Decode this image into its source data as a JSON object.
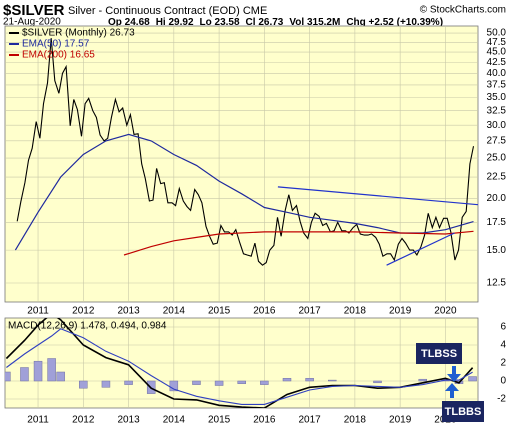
{
  "chart_data": [
    {
      "type": "line",
      "title": "$SILVER",
      "subtitle": "Silver - Continuous Contract (EOD) CME",
      "source": "© StockCharts.com",
      "date": "21-Aug-2020",
      "quote": [
        "Op 24.68",
        "Hi 29.92",
        "Lo 23.58",
        "Cl 26.73",
        "Vol 315.2M",
        "Chg +2.52 (+10.39%)"
      ],
      "log_scale": true,
      "grid": true,
      "xlim": [
        2010.27,
        2020.72
      ],
      "xticks": [
        2011,
        2012,
        2013,
        2014,
        2015,
        2016,
        2017,
        2018,
        2019,
        2020
      ],
      "ylim": [
        11.25,
        52
      ],
      "yticks": [
        {
          "value": 12.5,
          "label": "12.5"
        },
        {
          "value": 15,
          "label": "15.0"
        },
        {
          "value": 17.5,
          "label": "17.5"
        },
        {
          "value": 20,
          "label": "20.0"
        },
        {
          "value": 22.5,
          "label": "22.5"
        },
        {
          "value": 25,
          "label": "25.0"
        },
        {
          "value": 27.5,
          "label": "27.5"
        },
        {
          "value": 30,
          "label": "30.0"
        },
        {
          "value": 32.5,
          "label": "32.5"
        },
        {
          "value": 35,
          "label": "35.0"
        },
        {
          "value": 37.5,
          "label": "37.5"
        },
        {
          "value": 40,
          "label": "40.0"
        },
        {
          "value": 42.5,
          "label": "42.5"
        },
        {
          "value": 45,
          "label": "45.0"
        },
        {
          "value": 47.5,
          "label": "47.5"
        },
        {
          "value": 50,
          "label": "50.0"
        }
      ],
      "series": [
        {
          "name": "$SILVER (Monthly) 26.73",
          "color": "#000000",
          "x": [
            2010.54,
            2010.62,
            2010.71,
            2010.79,
            2010.87,
            2010.96,
            2011.04,
            2011.12,
            2011.21,
            2011.29,
            2011.37,
            2011.46,
            2011.54,
            2011.62,
            2011.71,
            2011.79,
            2011.87,
            2011.96,
            2012.04,
            2012.12,
            2012.21,
            2012.29,
            2012.37,
            2012.46,
            2012.54,
            2012.62,
            2012.71,
            2012.79,
            2012.87,
            2012.96,
            2013.04,
            2013.12,
            2013.21,
            2013.29,
            2013.37,
            2013.46,
            2013.54,
            2013.62,
            2013.71,
            2013.79,
            2013.87,
            2013.96,
            2014.04,
            2014.12,
            2014.21,
            2014.29,
            2014.37,
            2014.46,
            2014.54,
            2014.62,
            2014.71,
            2014.79,
            2014.87,
            2014.96,
            2015.04,
            2015.12,
            2015.21,
            2015.29,
            2015.37,
            2015.46,
            2015.54,
            2015.62,
            2015.71,
            2015.79,
            2015.87,
            2015.96,
            2016.04,
            2016.12,
            2016.21,
            2016.29,
            2016.37,
            2016.46,
            2016.54,
            2016.62,
            2016.71,
            2016.79,
            2016.87,
            2016.96,
            2017.04,
            2017.12,
            2017.21,
            2017.29,
            2017.37,
            2017.46,
            2017.54,
            2017.62,
            2017.71,
            2017.79,
            2017.87,
            2017.96,
            2018.04,
            2018.12,
            2018.21,
            2018.29,
            2018.37,
            2018.46,
            2018.54,
            2018.62,
            2018.71,
            2018.79,
            2018.87,
            2018.96,
            2019.04,
            2019.12,
            2019.21,
            2019.29,
            2019.37,
            2019.46,
            2019.54,
            2019.62,
            2019.71,
            2019.79,
            2019.87,
            2019.96,
            2020.04,
            2020.12,
            2020.21,
            2020.29,
            2020.37,
            2020.46,
            2020.54,
            2020.62
          ],
          "values": [
            17.6,
            19.6,
            21.8,
            24.7,
            26.4,
            30.6,
            27.9,
            33.8,
            37.9,
            48.6,
            38.4,
            35.8,
            40.0,
            41.5,
            29.9,
            34.6,
            32.7,
            28.2,
            33.8,
            34.8,
            32.5,
            31.3,
            28.4,
            27.5,
            27.9,
            31.3,
            34.6,
            32.3,
            33.0,
            30.0,
            31.8,
            28.5,
            28.6,
            24.2,
            22.3,
            19.7,
            19.8,
            23.6,
            21.7,
            21.8,
            19.5,
            19.5,
            19.2,
            21.1,
            19.7,
            19.1,
            18.7,
            21.0,
            20.4,
            19.5,
            17.1,
            16.2,
            15.5,
            15.6,
            17.2,
            16.6,
            16.6,
            16.3,
            16.8,
            15.6,
            14.7,
            14.6,
            14.5,
            15.6,
            14.1,
            13.8,
            14.0,
            15.0,
            15.4,
            18.0,
            16.2,
            18.7,
            20.4,
            18.7,
            19.2,
            17.6,
            16.5,
            16.0,
            17.5,
            18.4,
            18.1,
            17.2,
            17.4,
            16.6,
            16.7,
            17.5,
            16.7,
            16.7,
            16.5,
            17.0,
            17.3,
            16.4,
            16.3,
            16.3,
            16.4,
            16.1,
            15.5,
            14.5,
            14.7,
            14.7,
            14.2,
            15.5,
            16.0,
            15.6,
            15.0,
            15.0,
            14.6,
            15.3,
            16.3,
            18.4,
            17.0,
            18.0,
            17.0,
            17.9,
            17.9,
            16.6,
            14.2,
            15.0,
            18.0,
            18.6,
            24.2,
            26.7
          ]
        },
        {
          "name": "EMA(50) 17.57",
          "color": "#1f2a9e",
          "x": [
            2010.5,
            2011,
            2011.5,
            2012,
            2012.5,
            2013,
            2013.5,
            2014,
            2014.5,
            2015,
            2015.5,
            2016,
            2016.5,
            2017,
            2017.5,
            2018,
            2018.5,
            2019,
            2019.5,
            2020,
            2020.62
          ],
          "values": [
            15,
            18.5,
            22.5,
            25.5,
            27.5,
            28.5,
            27.5,
            25.5,
            24,
            22,
            20.5,
            19,
            18.5,
            18,
            17.7,
            17.4,
            17,
            16.5,
            16.5,
            16.8,
            17.57
          ]
        },
        {
          "name": "EMA(200) 16.65",
          "color": "#c00000",
          "x": [
            2012.9,
            2013.5,
            2014,
            2014.5,
            2015,
            2016,
            2017,
            2018,
            2019,
            2020,
            2020.62
          ],
          "values": [
            14.6,
            15.3,
            15.8,
            16.1,
            16.4,
            16.6,
            16.6,
            16.6,
            16.5,
            16.4,
            16.65
          ]
        }
      ],
      "trendlines": [
        {
          "color": "#2233cc",
          "x": [
            2016.3,
            2020.72
          ],
          "values": [
            21.3,
            19.3
          ]
        },
        {
          "color": "#2233cc",
          "x": [
            2018.7,
            2020.2
          ],
          "values": [
            13.8,
            16.5
          ]
        }
      ]
    },
    {
      "type": "macd",
      "title": "MACD(12,26,9) 1.478, 0.494, 0.984",
      "grid": true,
      "xlim": [
        2010.27,
        2020.72
      ],
      "xticks": [
        2011,
        2012,
        2013,
        2014,
        2015,
        2016,
        2017,
        2018,
        2019,
        2020
      ],
      "ylim": [
        -3,
        7
      ],
      "yticks": [
        -2,
        0,
        2,
        4,
        6
      ],
      "x": [
        2010.3,
        2010.7,
        2011,
        2011.3,
        2011.5,
        2012,
        2012.5,
        2013,
        2013.5,
        2014,
        2014.5,
        2015,
        2015.5,
        2016,
        2016.5,
        2017,
        2017.5,
        2018,
        2018.5,
        2019,
        2019.5,
        2020,
        2020.3,
        2020.6
      ],
      "series": [
        {
          "kind": "histogram",
          "color": "#a0a0d8",
          "values": [
            1.0,
            1.5,
            2.2,
            2.5,
            1.0,
            -0.8,
            -0.7,
            -0.4,
            -1.4,
            -1.1,
            -0.4,
            -0.5,
            -0.3,
            -0.4,
            0.3,
            0.3,
            0.1,
            0,
            -0.2,
            0,
            0.2,
            0.2,
            -0.3,
            0.494
          ]
        },
        {
          "kind": "line",
          "color": "#000000",
          "values": [
            2.5,
            4.5,
            6.2,
            7.5,
            6.8,
            4.0,
            2.6,
            1.8,
            -0.8,
            -2.0,
            -2.1,
            -2.7,
            -2.9,
            -3.0,
            -1.5,
            -0.7,
            -0.5,
            -0.5,
            -0.8,
            -0.7,
            -0.2,
            0.3,
            -0.2,
            1.478
          ]
        },
        {
          "kind": "line",
          "color": "#3040c0",
          "values": [
            1.5,
            3.0,
            4.0,
            5.0,
            5.8,
            4.8,
            3.3,
            2.2,
            0.6,
            -0.9,
            -1.7,
            -2.2,
            -2.6,
            -2.6,
            -1.8,
            -1.0,
            -0.6,
            -0.5,
            -0.6,
            -0.7,
            -0.4,
            0.1,
            0.1,
            0.984
          ]
        }
      ],
      "annotations": [
        "TLBSS",
        "TLBBS"
      ]
    }
  ]
}
